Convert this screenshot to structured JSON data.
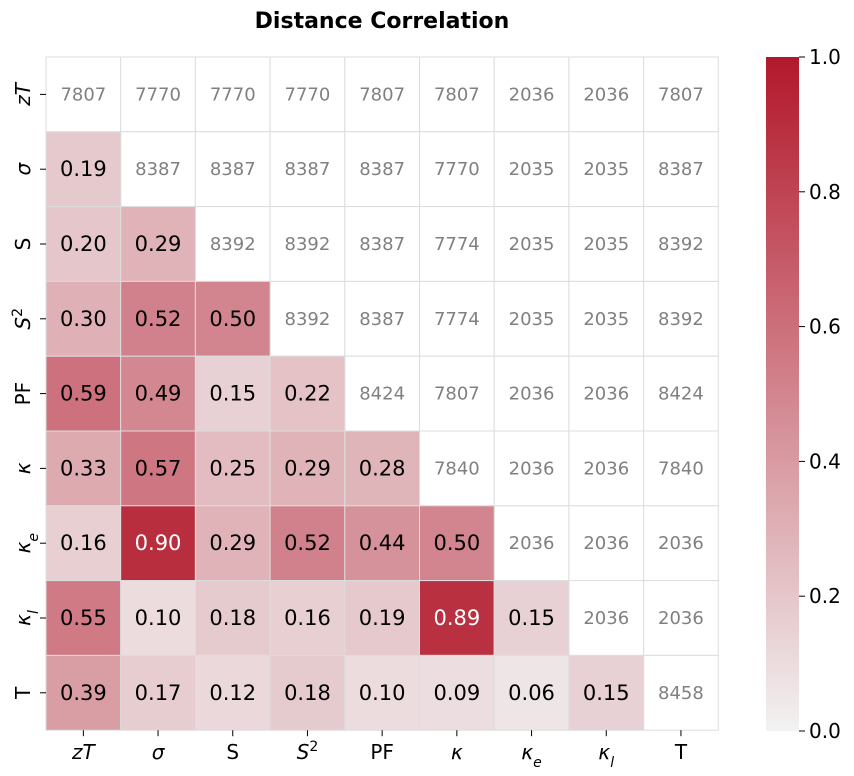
{
  "chart_data": {
    "type": "heatmap",
    "title": "Distance Correlation",
    "row_labels": [
      {
        "base": "zT",
        "italic": true
      },
      {
        "base": "σ",
        "italic": true
      },
      {
        "base": "S",
        "italic": false
      },
      {
        "base": "S",
        "italic": true,
        "sup": "2"
      },
      {
        "base": "PF",
        "italic": false
      },
      {
        "base": "κ",
        "italic": true
      },
      {
        "base": "κ",
        "italic": true,
        "sub": "e"
      },
      {
        "base": "κ",
        "italic": true,
        "sub": "l"
      },
      {
        "base": "T",
        "italic": false
      }
    ],
    "col_labels": [
      {
        "base": "zT",
        "italic": true
      },
      {
        "base": "σ",
        "italic": true
      },
      {
        "base": "S",
        "italic": false
      },
      {
        "base": "S",
        "italic": true,
        "sup": "2"
      },
      {
        "base": "PF",
        "italic": false
      },
      {
        "base": "κ",
        "italic": true
      },
      {
        "base": "κ",
        "italic": true,
        "sub": "e"
      },
      {
        "base": "κ",
        "italic": true,
        "sub": "l"
      },
      {
        "base": "T",
        "italic": false
      }
    ],
    "correlation_lower": [
      [],
      [
        0.19
      ],
      [
        0.2,
        0.29
      ],
      [
        0.3,
        0.52,
        0.5
      ],
      [
        0.59,
        0.49,
        0.15,
        0.22
      ],
      [
        0.33,
        0.57,
        0.25,
        0.29,
        0.28
      ],
      [
        0.16,
        0.9,
        0.29,
        0.52,
        0.44,
        0.5
      ],
      [
        0.55,
        0.1,
        0.18,
        0.16,
        0.19,
        0.89,
        0.15
      ],
      [
        0.39,
        0.17,
        0.12,
        0.18,
        0.1,
        0.09,
        0.06,
        0.15
      ]
    ],
    "sample_counts_upper": [
      [
        7807,
        7770,
        7770,
        7770,
        7807,
        7807,
        2036,
        2036,
        7807
      ],
      [
        8387,
        8387,
        8387,
        8387,
        7770,
        2035,
        2035,
        8387
      ],
      [
        8392,
        8392,
        8387,
        7774,
        2035,
        2035,
        8392
      ],
      [
        8392,
        8387,
        7774,
        2035,
        2035,
        8392
      ],
      [
        8424,
        7807,
        2036,
        2036,
        8424
      ],
      [
        7840,
        2036,
        2036,
        7840
      ],
      [
        2036,
        2036,
        2036
      ],
      [
        2036,
        2036
      ],
      [
        8458
      ]
    ],
    "colorbar": {
      "range": [
        0.0,
        1.0
      ],
      "ticks": [
        "0.0",
        "0.2",
        "0.4",
        "0.6",
        "0.8",
        "1.0"
      ],
      "low_color": "#f2f2f2",
      "high_color": "#b2182b"
    },
    "count_text_color": "#808080",
    "grid_line_color": "#dddddd"
  }
}
